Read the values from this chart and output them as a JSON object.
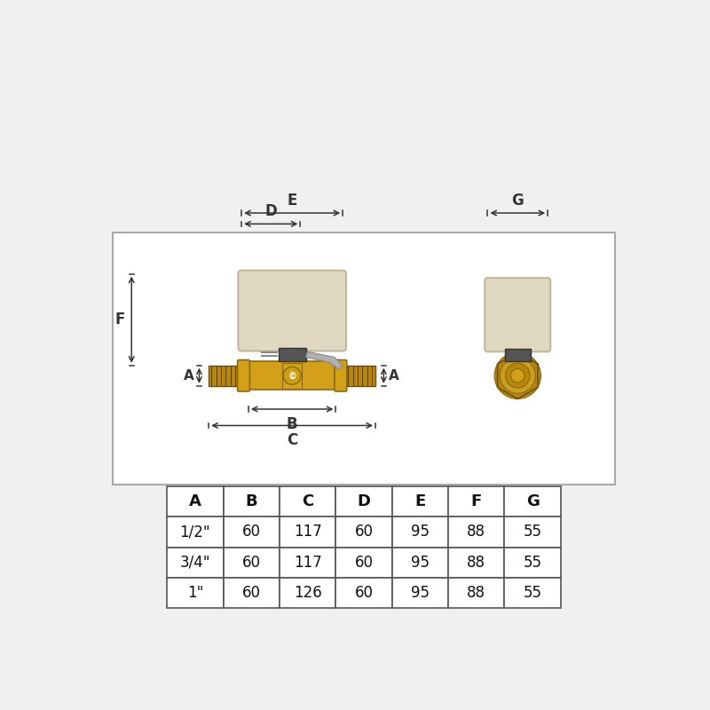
{
  "bg_color": "#ffffff",
  "fig_bg": "#f0f0f0",
  "border_color": "#aaaaaa",
  "table_headers": [
    "A",
    "B",
    "C",
    "D",
    "E",
    "F",
    "G"
  ],
  "table_rows": [
    [
      "1/2\"",
      "60",
      "117",
      "60",
      "95",
      "88",
      "55"
    ],
    [
      "3/4\"",
      "60",
      "117",
      "60",
      "95",
      "88",
      "55"
    ],
    [
      "1\"",
      "60",
      "126",
      "60",
      "95",
      "88",
      "55"
    ]
  ],
  "brass_color": "#d4a017",
  "brass_dark": "#b8860b",
  "brass_thread": "#8b7020",
  "actuator_color": "#e0d8c0",
  "actuator_border": "#c0b898",
  "connector_color": "#555555",
  "connector_dark": "#333333",
  "dim_color": "#333333",
  "lever_color": "#aaaaaa",
  "lever_tip": "#bbbbbb"
}
